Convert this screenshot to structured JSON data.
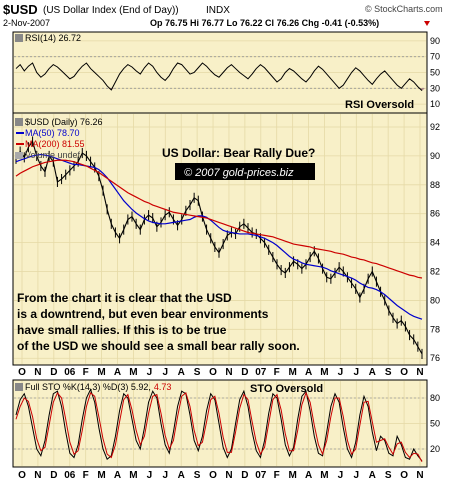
{
  "header": {
    "symbol": "$USD",
    "index_name": "(US Dollar Index (End of Day))",
    "exchange": "INDX",
    "date": "2-Nov-2007",
    "quote": "Op 76.75  Hi 76.77  Lo 76.22  Cl 76.26  Chg -0.41 (-0.53%)",
    "logo": "© StockCharts.com"
  },
  "chart_data": [
    {
      "type": "line",
      "panel": "rsi",
      "legend": "RSI(14) 26.72",
      "annotation": "RSI Oversold",
      "y_ticks": [
        90,
        70,
        50,
        30,
        10
      ],
      "ylim": [
        0,
        100
      ],
      "reference_lines": [
        70,
        30
      ],
      "values": [
        55,
        60,
        52,
        58,
        62,
        50,
        44,
        48,
        55,
        60,
        57,
        52,
        47,
        42,
        45,
        52,
        58,
        62,
        55,
        50,
        45,
        40,
        33,
        28,
        38,
        48,
        55,
        60,
        57,
        52,
        48,
        56,
        62,
        58,
        50,
        44,
        40,
        46,
        55,
        62,
        60,
        54,
        48,
        50,
        56,
        62,
        58,
        52,
        47,
        44,
        50,
        56,
        60,
        55,
        50,
        46,
        42,
        48,
        55,
        60,
        56,
        50,
        44,
        38,
        42,
        50,
        55,
        52,
        47,
        42,
        38,
        44,
        52,
        58,
        54,
        48,
        42,
        36,
        30,
        34,
        42,
        50,
        56,
        52,
        46,
        40,
        35,
        42,
        48,
        52,
        46,
        40,
        34,
        30,
        36,
        42,
        38,
        32,
        27
      ]
    },
    {
      "type": "line",
      "panel": "price",
      "title": "US Dollar: Bear Rally Due?",
      "watermark": "© 2007 gold-prices.biz",
      "legend": {
        "price": "$USD (Daily) 76.26",
        "ma50": "MA(50) 78.70",
        "ma200": "MA(200) 81.55",
        "volume": "Volume undef"
      },
      "commentary": "From the chart it is clear that the USD is a downtrend, but even bear environments have small rallies. If this is to be true of the USD we should see a small bear rally soon.",
      "y_ticks": [
        92,
        90,
        88,
        86,
        84,
        82,
        80,
        78,
        76
      ],
      "ylim": [
        75.6,
        92.9
      ],
      "x_labels": [
        "O",
        "N",
        "D",
        "06",
        "F",
        "M",
        "A",
        "M",
        "J",
        "J",
        "A",
        "S",
        "O",
        "N",
        "D",
        "07",
        "F",
        "M",
        "A",
        "M",
        "J",
        "J",
        "A",
        "S",
        "O",
        "N"
      ],
      "series": [
        {
          "name": "$USD (Daily)",
          "color": "#000000",
          "values": [
            89.8,
            90.3,
            89.9,
            90.6,
            91.0,
            90.0,
            89.3,
            88.9,
            90.0,
            89.6,
            88.2,
            88.4,
            88.7,
            89.0,
            89.3,
            89.6,
            90.2,
            90.0,
            89.6,
            89.2,
            88.6,
            87.6,
            86.3,
            85.3,
            84.7,
            84.3,
            84.9,
            85.6,
            85.8,
            85.3,
            84.9,
            85.6,
            85.9,
            85.7,
            85.1,
            85.4,
            85.9,
            86.1,
            85.6,
            85.2,
            85.6,
            86.2,
            86.6,
            87.1,
            86.9,
            85.8,
            84.9,
            84.3,
            83.7,
            83.3,
            83.9,
            84.5,
            84.7,
            84.6,
            85.1,
            85.3,
            85.0,
            84.7,
            84.6,
            84.3,
            84.0,
            83.5,
            83.0,
            82.5,
            82.1,
            81.9,
            82.3,
            82.7,
            82.5,
            82.2,
            82.5,
            83.0,
            83.4,
            82.9,
            82.2,
            81.6,
            81.5,
            81.9,
            82.3,
            82.0,
            81.6,
            81.2,
            80.8,
            80.2,
            80.8,
            81.5,
            82.0,
            81.3,
            80.6,
            80.0,
            79.3,
            78.8,
            78.4,
            78.6,
            78.2,
            77.6,
            77.3,
            76.8,
            76.3
          ]
        },
        {
          "name": "MA(50)",
          "color": "#0000cc",
          "values": [
            89.6,
            89.7,
            89.8,
            89.9,
            90.0,
            90.05,
            90.1,
            90.05,
            90.0,
            89.9,
            89.8,
            89.7,
            89.6,
            89.5,
            89.4,
            89.4,
            89.35,
            89.3,
            89.25,
            89.2,
            89.05,
            88.8,
            88.5,
            88.1,
            87.7,
            87.3,
            86.9,
            86.6,
            86.3,
            86.05,
            85.85,
            85.65,
            85.5,
            85.4,
            85.35,
            85.3,
            85.3,
            85.35,
            85.4,
            85.45,
            85.5,
            85.55,
            85.6,
            85.75,
            85.85,
            85.85,
            85.75,
            85.55,
            85.3,
            85.05,
            84.85,
            84.75,
            84.7,
            84.65,
            84.6,
            84.6,
            84.6,
            84.55,
            84.5,
            84.4,
            84.3,
            84.15,
            84.0,
            83.8,
            83.55,
            83.3,
            83.05,
            82.85,
            82.75,
            82.6,
            82.5,
            82.45,
            82.4,
            82.35,
            82.3,
            82.2,
            82.05,
            81.95,
            81.85,
            81.75,
            81.65,
            81.55,
            81.4,
            81.2,
            81.05,
            80.9,
            80.85,
            80.75,
            80.6,
            80.4,
            80.15,
            79.9,
            79.65,
            79.45,
            79.25,
            79.05,
            78.9,
            78.8,
            78.7
          ]
        },
        {
          "name": "MA(200)",
          "color": "#cc0000",
          "values": [
            88.6,
            88.8,
            88.95,
            89.1,
            89.25,
            89.35,
            89.45,
            89.55,
            89.6,
            89.65,
            89.7,
            89.7,
            89.7,
            89.65,
            89.6,
            89.5,
            89.4,
            89.3,
            89.15,
            89.0,
            88.85,
            88.65,
            88.45,
            88.25,
            88.05,
            87.85,
            87.65,
            87.45,
            87.3,
            87.15,
            87.0,
            86.85,
            86.75,
            86.6,
            86.5,
            86.4,
            86.3,
            86.2,
            86.1,
            86.05,
            86.0,
            85.95,
            85.9,
            85.85,
            85.8,
            85.75,
            85.7,
            85.6,
            85.5,
            85.4,
            85.3,
            85.2,
            85.1,
            85.0,
            84.9,
            84.8,
            84.7,
            84.65,
            84.6,
            84.55,
            84.5,
            84.45,
            84.4,
            84.3,
            84.2,
            84.1,
            84.0,
            83.9,
            83.85,
            83.8,
            83.75,
            83.7,
            83.6,
            83.55,
            83.5,
            83.45,
            83.4,
            83.3,
            83.25,
            83.2,
            83.1,
            83.0,
            82.95,
            82.85,
            82.8,
            82.7,
            82.6,
            82.55,
            82.45,
            82.35,
            82.25,
            82.15,
            82.05,
            81.95,
            81.85,
            81.75,
            81.7,
            81.6,
            81.55
          ]
        }
      ]
    },
    {
      "type": "line",
      "panel": "stochastic",
      "legend_k": "Full STO %K(14,3) %D(3) 5.92,",
      "legend_d": "4.73",
      "annotation": "STO Oversold",
      "y_ticks": [
        80,
        50,
        20
      ],
      "ylim": [
        0,
        100
      ],
      "reference_lines": [
        80,
        20
      ],
      "x_labels": [
        "O",
        "N",
        "D",
        "06",
        "F",
        "M",
        "A",
        "M",
        "J",
        "J",
        "A",
        "S",
        "O",
        "N",
        "D",
        "07",
        "F",
        "M",
        "A",
        "M",
        "J",
        "J",
        "A",
        "S",
        "O",
        "N"
      ],
      "series": [
        {
          "name": "%K",
          "color": "#000000",
          "values": [
            60,
            78,
            85,
            70,
            45,
            20,
            12,
            30,
            60,
            85,
            88,
            70,
            40,
            15,
            10,
            25,
            55,
            80,
            90,
            75,
            45,
            20,
            8,
            12,
            35,
            65,
            85,
            80,
            55,
            30,
            20,
            45,
            75,
            88,
            80,
            50,
            25,
            15,
            40,
            70,
            88,
            85,
            60,
            30,
            18,
            35,
            65,
            85,
            78,
            50,
            22,
            10,
            20,
            50,
            78,
            88,
            70,
            40,
            18,
            10,
            30,
            62,
            85,
            80,
            55,
            25,
            12,
            22,
            55,
            82,
            88,
            65,
            35,
            15,
            12,
            40,
            70,
            85,
            75,
            45,
            20,
            10,
            28,
            60,
            82,
            70,
            40,
            18,
            35,
            30,
            15,
            12,
            35,
            25,
            10,
            8,
            20,
            12,
            6
          ]
        },
        {
          "name": "%D",
          "color": "#cc0000",
          "values": [
            55,
            70,
            80,
            76,
            58,
            32,
            18,
            22,
            48,
            75,
            86,
            80,
            55,
            28,
            14,
            18,
            42,
            70,
            86,
            82,
            58,
            32,
            14,
            10,
            25,
            52,
            78,
            84,
            66,
            42,
            25,
            35,
            62,
            82,
            84,
            62,
            36,
            20,
            30,
            58,
            82,
            86,
            70,
            42,
            24,
            28,
            52,
            78,
            82,
            62,
            34,
            16,
            16,
            40,
            68,
            84,
            78,
            52,
            28,
            14,
            22,
            50,
            78,
            84,
            66,
            38,
            18,
            18,
            42,
            72,
            86,
            75,
            48,
            25,
            14,
            30,
            58,
            80,
            80,
            58,
            30,
            14,
            20,
            48,
            75,
            76,
            52,
            28,
            30,
            32,
            22,
            14,
            26,
            28,
            16,
            10,
            15,
            14,
            5
          ]
        }
      ]
    }
  ],
  "colors": {
    "panel_bg": "#f8f0c8",
    "grid": "#e5d9a6",
    "border": "#000000",
    "neg_change": "#cc0000",
    "ma50": "#0000cc",
    "ma200": "#cc0000",
    "watermark_bg": "#000000",
    "watermark_fg": "#ffffff",
    "rsi_fill": "#b08888"
  }
}
